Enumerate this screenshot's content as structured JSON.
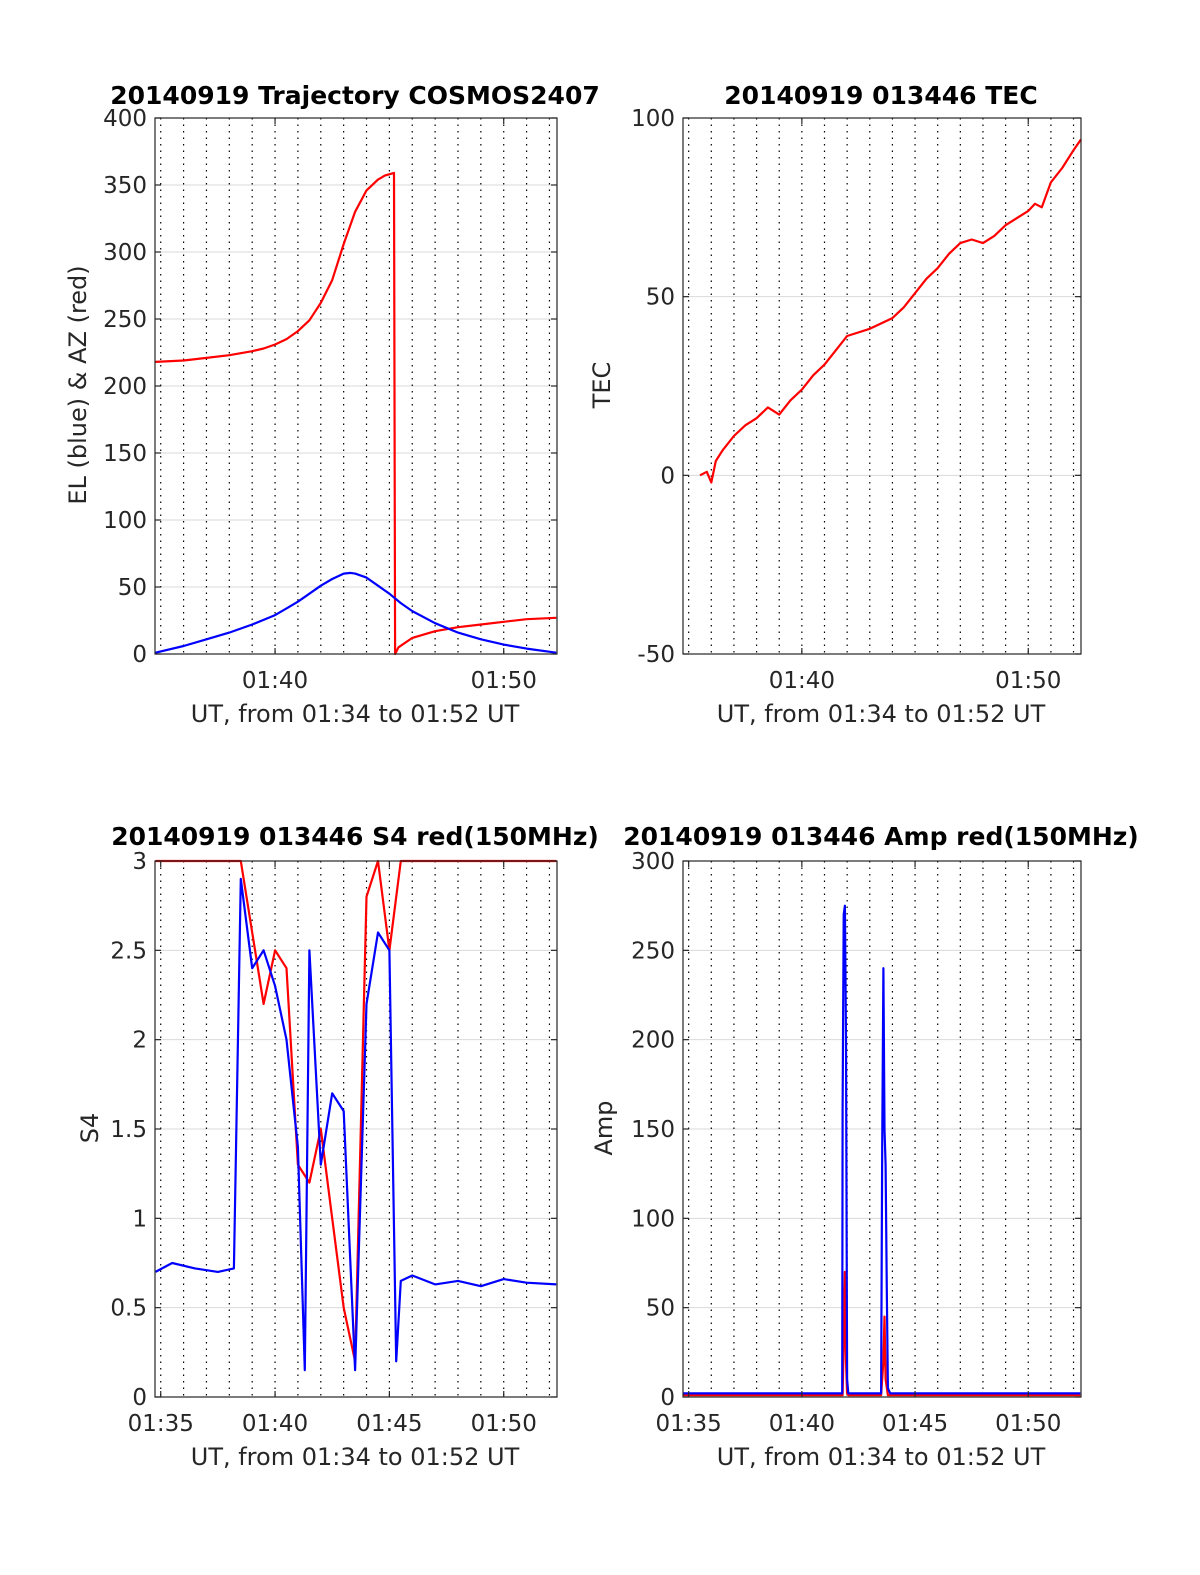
{
  "figure": {
    "colors": {
      "red": "#ff0000",
      "blue": "#0000ff",
      "grid": "#d9d9d9",
      "minor_grid": "#000000",
      "axis": "#262626"
    },
    "xlabel": "UT, from 01:34 to 01:52 UT"
  },
  "chart_data": [
    {
      "id": "traj",
      "type": "line",
      "title": "20140919 Trajectory COSMOS2407",
      "xlabel": "UT, from 01:34 to 01:52 UT",
      "ylabel": "EL (blue) & AZ (red)",
      "xlim_min": [
        94.75,
        112.33
      ],
      "ylim": [
        0,
        400
      ],
      "yticks": [
        0,
        50,
        100,
        150,
        200,
        250,
        300,
        350,
        400
      ],
      "xticks": [
        {
          "x_min": 100,
          "label": "01:40"
        },
        {
          "x_min": 110,
          "label": "01:50"
        }
      ],
      "grid": true,
      "minor_grid_x": true,
      "series": [
        {
          "color": "#ff0000",
          "x_min": [
            94.77,
            96,
            97,
            98,
            99,
            99.5,
            100,
            100.5,
            101,
            101.5,
            102,
            102.5,
            103,
            103.5,
            104,
            104.5,
            104.8,
            105.2,
            105.25,
            105.4,
            106,
            107,
            108,
            109,
            110,
            111,
            112.3
          ],
          "values": [
            218,
            219,
            221,
            223,
            226,
            228,
            231,
            235,
            241,
            249,
            262,
            279,
            306,
            330,
            346,
            354,
            357,
            359,
            0,
            5,
            12,
            17,
            20,
            22,
            24,
            26,
            27
          ]
        },
        {
          "color": "#0000ff",
          "x_min": [
            94.77,
            96,
            97,
            98,
            99,
            100,
            100.5,
            101,
            101.5,
            102,
            102.5,
            103,
            103.3,
            103.5,
            104,
            104.5,
            105,
            105.5,
            106,
            107,
            108,
            109,
            110,
            111,
            112.3
          ],
          "values": [
            1,
            6,
            11,
            16,
            22,
            29,
            34,
            39,
            45,
            51,
            56,
            60,
            60.5,
            60,
            57,
            51,
            45,
            38,
            32,
            23,
            16,
            11,
            7,
            4,
            1
          ]
        }
      ]
    },
    {
      "id": "tec",
      "type": "line",
      "title": "20140919 013446 TEC",
      "xlabel": "UT, from 01:34 to 01:52 UT",
      "ylabel": "TEC",
      "xlim_min": [
        94.75,
        112.33
      ],
      "ylim": [
        -50,
        100
      ],
      "yticks": [
        -50,
        0,
        50,
        100
      ],
      "xticks": [
        {
          "x_min": 100,
          "label": "01:40"
        },
        {
          "x_min": 110,
          "label": "01:50"
        }
      ],
      "grid": true,
      "minor_grid_x": true,
      "series": [
        {
          "color": "#ff0000",
          "x_min": [
            95.5,
            95.8,
            96,
            96.2,
            96.5,
            97,
            97.5,
            98,
            98.5,
            99,
            99.5,
            100,
            100.5,
            101,
            101.5,
            102,
            103,
            104,
            104.5,
            105,
            105.5,
            106,
            106.5,
            107,
            107.5,
            108,
            108.5,
            109,
            109.5,
            110,
            110.3,
            110.6,
            111,
            111.5,
            112,
            112.33
          ],
          "values": [
            0,
            1,
            -2,
            4,
            7,
            11,
            14,
            16,
            19,
            17,
            21,
            24,
            28,
            31,
            35,
            39,
            41,
            44,
            47,
            51,
            55,
            58,
            62,
            65,
            66,
            65,
            67,
            70,
            72,
            74,
            76,
            75,
            82,
            86,
            91,
            94
          ]
        }
      ]
    },
    {
      "id": "s4",
      "type": "line",
      "title": "20140919 013446 S4 red(150MHz)",
      "xlabel": "UT, from 01:34 to 01:52 UT",
      "ylabel": "S4",
      "xlim_min": [
        94.75,
        112.33
      ],
      "ylim": [
        0,
        3
      ],
      "yticks": [
        0,
        0.5,
        1,
        1.5,
        2,
        2.5,
        3
      ],
      "ytick_labels": [
        "0",
        "0.5",
        "1",
        "1.5",
        "2",
        "2.5",
        "3"
      ],
      "xticks": [
        {
          "x_min": 95,
          "label": "01:35"
        },
        {
          "x_min": 100,
          "label": "01:40"
        },
        {
          "x_min": 105,
          "label": "01:45"
        },
        {
          "x_min": 110,
          "label": "01:50"
        }
      ],
      "grid": true,
      "minor_grid_x": true,
      "series": [
        {
          "color": "#ff0000",
          "x_min": [
            94.77,
            95.5,
            96.5,
            97.5,
            98.5,
            99,
            99.5,
            100,
            100.5,
            101,
            101.5,
            102,
            102.5,
            103,
            103.5,
            104,
            104.5,
            105,
            105.5,
            106,
            107,
            108,
            109,
            110,
            111,
            112.3
          ],
          "values": [
            3,
            3,
            3,
            3,
            3,
            2.6,
            2.2,
            2.5,
            2.4,
            1.3,
            1.2,
            1.5,
            1.0,
            0.5,
            0.2,
            2.8,
            3,
            2.5,
            3,
            3,
            3,
            3,
            3,
            3,
            3,
            3
          ]
        },
        {
          "color": "#0000ff",
          "x_min": [
            94.77,
            95.5,
            96.5,
            97.5,
            98.2,
            98.5,
            99,
            99.5,
            100,
            100.5,
            101,
            101.3,
            101.5,
            102,
            102.5,
            103,
            103.5,
            104,
            104.5,
            105,
            105.3,
            105.5,
            106,
            107,
            108,
            109,
            110,
            111,
            112.3
          ],
          "values": [
            0.7,
            0.75,
            0.72,
            0.7,
            0.72,
            2.9,
            2.4,
            2.5,
            2.3,
            2.0,
            1.4,
            0.15,
            2.5,
            1.3,
            1.7,
            1.6,
            0.15,
            2.2,
            2.6,
            2.5,
            0.2,
            0.65,
            0.68,
            0.63,
            0.65,
            0.62,
            0.66,
            0.64,
            0.63
          ]
        }
      ]
    },
    {
      "id": "amp",
      "type": "line",
      "title": "20140919 013446 Amp red(150MHz)",
      "xlabel": "UT, from 01:34 to 01:52 UT",
      "ylabel": "Amp",
      "xlim_min": [
        94.75,
        112.33
      ],
      "ylim": [
        0,
        300
      ],
      "yticks": [
        0,
        50,
        100,
        150,
        200,
        250,
        300
      ],
      "xticks": [
        {
          "x_min": 95,
          "label": "01:35"
        },
        {
          "x_min": 100,
          "label": "01:40"
        },
        {
          "x_min": 105,
          "label": "01:45"
        },
        {
          "x_min": 110,
          "label": "01:50"
        }
      ],
      "grid": true,
      "minor_grid_x": true,
      "series": [
        {
          "color": "#ff0000",
          "x_min": [
            94.77,
            101.8,
            101.85,
            101.9,
            101.95,
            102.0,
            102.05,
            103.5,
            103.6,
            103.65,
            103.7,
            103.8,
            112.3
          ],
          "values": [
            1,
            1,
            30,
            70,
            20,
            2,
            1,
            1,
            20,
            45,
            10,
            1,
            1
          ]
        },
        {
          "color": "#0000ff",
          "x_min": [
            94.77,
            101.78,
            101.8,
            101.85,
            101.9,
            101.95,
            102.0,
            102.05,
            103.5,
            103.55,
            103.6,
            103.65,
            103.7,
            103.75,
            103.8,
            103.9,
            112.3
          ],
          "values": [
            2,
            2,
            160,
            270,
            275,
            200,
            10,
            2,
            2,
            140,
            240,
            150,
            130,
            60,
            5,
            2,
            2
          ]
        }
      ]
    }
  ]
}
